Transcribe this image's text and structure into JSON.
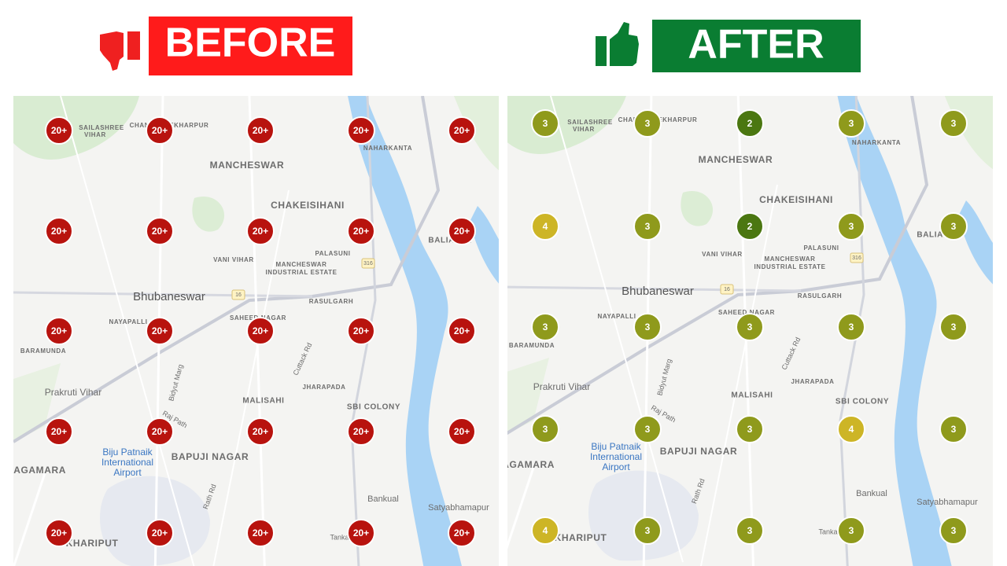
{
  "before": {
    "label": "BEFORE",
    "color": "#c4120f",
    "markers": [
      [
        "20+",
        "20+",
        "20+",
        "20+",
        "20+"
      ],
      [
        "20+",
        "20+",
        "20+",
        "20+",
        "20+"
      ],
      [
        "20+",
        "20+",
        "20+",
        "20+",
        "20+"
      ],
      [
        "20+",
        "20+",
        "20+",
        "20+",
        "20+"
      ],
      [
        "20+",
        "20+",
        "20+",
        "20+",
        "20+"
      ]
    ]
  },
  "after": {
    "label": "AFTER",
    "color": "#0a7d32",
    "markers": [
      [
        3,
        3,
        2,
        3,
        3
      ],
      [
        4,
        3,
        2,
        3,
        3
      ],
      [
        3,
        3,
        3,
        3,
        3
      ],
      [
        3,
        3,
        3,
        4,
        3
      ],
      [
        4,
        3,
        3,
        3,
        3
      ]
    ]
  },
  "marker_colors": {
    "before": "#b8130e",
    "2": "#4b7711",
    "3": "#8f9a1c",
    "4": "#cdb526"
  },
  "map_labels": [
    "SAILASHREE",
    "VIHAR",
    "CHANDRASEKHARPUR",
    "NAHARKANTA",
    "MANCHESWAR",
    "CHAKEISIHANI",
    "BALIANTA",
    "VANI VIHAR",
    "PALASUNI",
    "MANCHESWAR",
    "INDUSTRIAL ESTATE",
    "Bhubaneswar",
    "RASULGARH",
    "SAHEED NAGAR",
    "NAYAPALLI",
    "BARAMUNDA",
    "Prakruti Vihar",
    "MALISAHI",
    "JHARAPADA",
    "SBI COLONY",
    "BAPUJI NAGAR",
    "Biju Patnaik",
    "International",
    "Airport",
    "JAGAMARA",
    "Bankual",
    "Satyabhamapur",
    "KHARIPUT",
    "Tankapani Rd",
    "Cuttack Rd",
    "Bidyut Marg",
    "Raj Path",
    "Rath Rd",
    "16",
    "316"
  ]
}
